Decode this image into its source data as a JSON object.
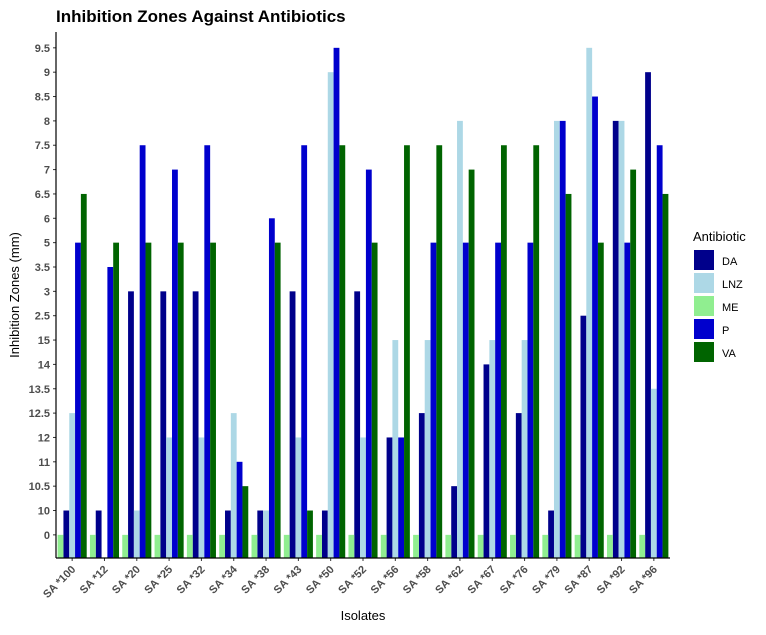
{
  "chart_data": {
    "type": "bar",
    "title": "Inhibition Zones Against Antibiotics",
    "x_label": "Isolates",
    "y_label": "Inhibition Zones (mm)",
    "legend_title": "Antibiotic",
    "legend_position": "right",
    "categories": [
      "SA *100",
      "SA *12",
      "SA *20",
      "SA *25",
      "SA *32",
      "SA *34",
      "SA *38",
      "SA *43",
      "SA *50",
      "SA *52",
      "SA *56",
      "SA *58",
      "SA *62",
      "SA *67",
      "SA *76",
      "SA *79",
      "SA *87",
      "SA *92",
      "SA *96"
    ],
    "series": [
      {
        "name": "DA",
        "color": "#00008B",
        "values": [
          2,
          2,
          11,
          11,
          11,
          2,
          2,
          11,
          2,
          11,
          5,
          6,
          3,
          8,
          6,
          2,
          10,
          18,
          20
        ]
      },
      {
        "name": "LNZ",
        "color": "#ADD8E6",
        "values": [
          6,
          null,
          2,
          5,
          5,
          6,
          2,
          5,
          20,
          5,
          9,
          9,
          18,
          9,
          9,
          18,
          21,
          18,
          7
        ]
      },
      {
        "name": "ME",
        "color": "#90EE90",
        "values": [
          1,
          1,
          1,
          1,
          1,
          1,
          1,
          1,
          1,
          1,
          1,
          1,
          1,
          1,
          1,
          1,
          1,
          1,
          1
        ]
      },
      {
        "name": "P",
        "color": "#0000CD",
        "values": [
          13,
          12,
          17,
          16,
          17,
          4,
          14,
          17,
          21,
          16,
          5,
          13,
          13,
          13,
          13,
          18,
          19,
          13,
          17
        ]
      },
      {
        "name": "VA",
        "color": "#006400",
        "values": [
          15,
          13,
          13,
          13,
          13,
          3,
          13,
          2,
          17,
          13,
          17,
          17,
          16,
          17,
          17,
          15,
          13,
          16,
          15
        ]
      }
    ],
    "ylim": [
      0.05,
      21.65
    ],
    "yticks": [
      {
        "value": 1,
        "label": "0"
      },
      {
        "value": 2,
        "label": "10"
      },
      {
        "value": 3,
        "label": "10.5"
      },
      {
        "value": 4,
        "label": "11"
      },
      {
        "value": 5,
        "label": "12"
      },
      {
        "value": 6,
        "label": "12.5"
      },
      {
        "value": 7,
        "label": "13.5"
      },
      {
        "value": 8,
        "label": "14"
      },
      {
        "value": 9,
        "label": "15"
      },
      {
        "value": 10,
        "label": "2.5"
      },
      {
        "value": 11,
        "label": "3"
      },
      {
        "value": 12,
        "label": "3.5"
      },
      {
        "value": 13,
        "label": "5"
      },
      {
        "value": 14,
        "label": "6"
      },
      {
        "value": 15,
        "label": "6.5"
      },
      {
        "value": 16,
        "label": "7"
      },
      {
        "value": 17,
        "label": "7.5"
      },
      {
        "value": 18,
        "label": "8"
      },
      {
        "value": 19,
        "label": "8.5"
      },
      {
        "value": 20,
        "label": "9"
      },
      {
        "value": 21,
        "label": "9.5"
      }
    ],
    "grid": false
  }
}
